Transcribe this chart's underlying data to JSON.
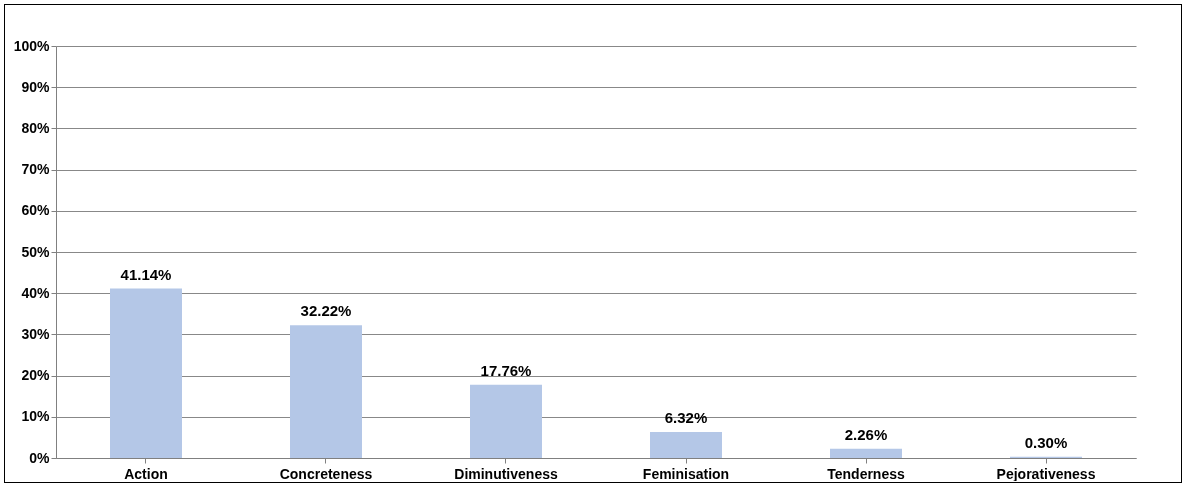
{
  "chart_data": {
    "type": "bar",
    "categories": [
      "Action",
      "Concreteness",
      "Diminutiveness",
      "Feminisation",
      "Tenderness",
      "Pejorativeness"
    ],
    "values": [
      41.14,
      32.22,
      17.76,
      6.32,
      2.26,
      0.3
    ],
    "value_labels": [
      "41.14%",
      "32.22%",
      "17.76%",
      "6.32%",
      "2.26%",
      "0.30%"
    ],
    "color": "#b4c7e7",
    "ylim": [
      0,
      100
    ],
    "yticks": [
      {
        "value": 0,
        "label": "0%"
      },
      {
        "value": 10,
        "label": "10%"
      },
      {
        "value": 20,
        "label": "20%"
      },
      {
        "value": 30,
        "label": "30%"
      },
      {
        "value": 40,
        "label": "40%"
      },
      {
        "value": 50,
        "label": "50%"
      },
      {
        "value": 60,
        "label": "60%"
      },
      {
        "value": 70,
        "label": "70%"
      },
      {
        "value": 80,
        "label": "80%"
      },
      {
        "value": 90,
        "label": "90%"
      },
      {
        "value": 100,
        "label": "100%"
      }
    ],
    "grid": "y"
  }
}
